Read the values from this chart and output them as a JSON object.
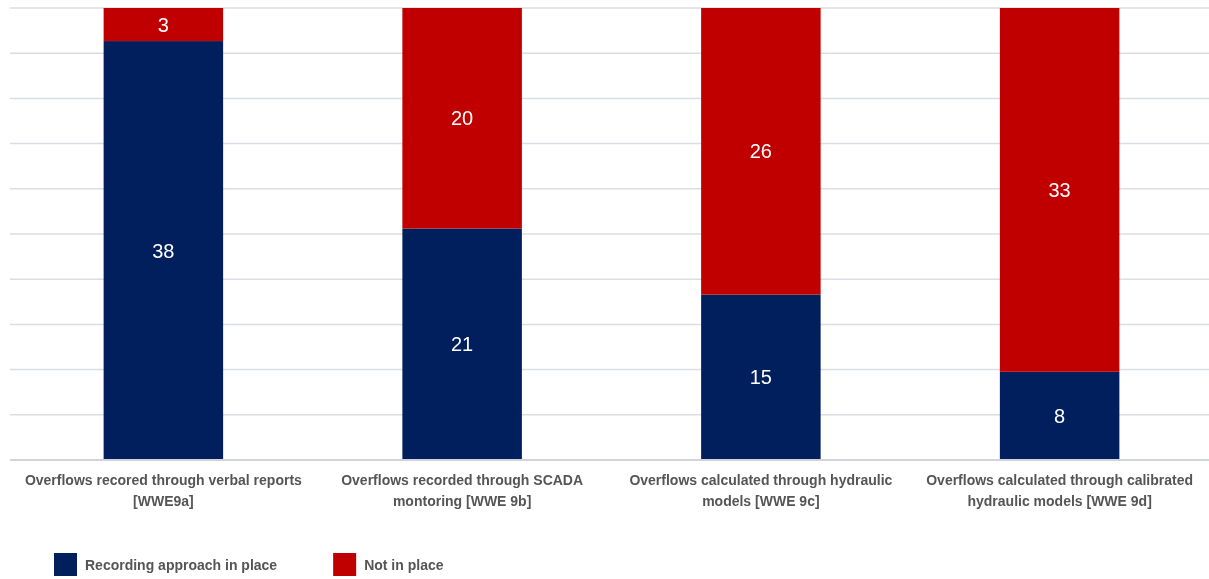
{
  "chart_data": {
    "type": "bar",
    "stacked": true,
    "categories": [
      "Overflows recored through verbal reports [WWE9a]",
      "Overflows recorded through SCADA montoring [WWE 9b]",
      "Overflows calculated through hydraulic models [WWE 9c]",
      "Overflows calculated through calibrated hydraulic models [WWE 9d]"
    ],
    "series": [
      {
        "name": "Recording approach in place",
        "color": "#001f5c",
        "values": [
          38,
          21,
          15,
          8
        ]
      },
      {
        "name": "Not in place",
        "color": "#c00000",
        "values": [
          3,
          20,
          26,
          33
        ]
      }
    ],
    "ylim": [
      0,
      41
    ],
    "yticks": [
      {
        "value": 0,
        "label": null
      },
      {
        "value": 4.1,
        "label": null
      },
      {
        "value": 8.2,
        "label": null
      },
      {
        "value": 12.3,
        "label": null
      },
      {
        "value": 16.4,
        "label": null
      },
      {
        "value": 20.5,
        "label": null
      },
      {
        "value": 24.6,
        "label": null
      },
      {
        "value": 28.7,
        "label": null
      },
      {
        "value": 32.8,
        "label": null
      },
      {
        "value": 36.9,
        "label": null
      },
      {
        "value": 41,
        "label": null
      }
    ],
    "tick_labels": "x",
    "grid": "y",
    "data_labels": true,
    "legend": "bottom left"
  }
}
